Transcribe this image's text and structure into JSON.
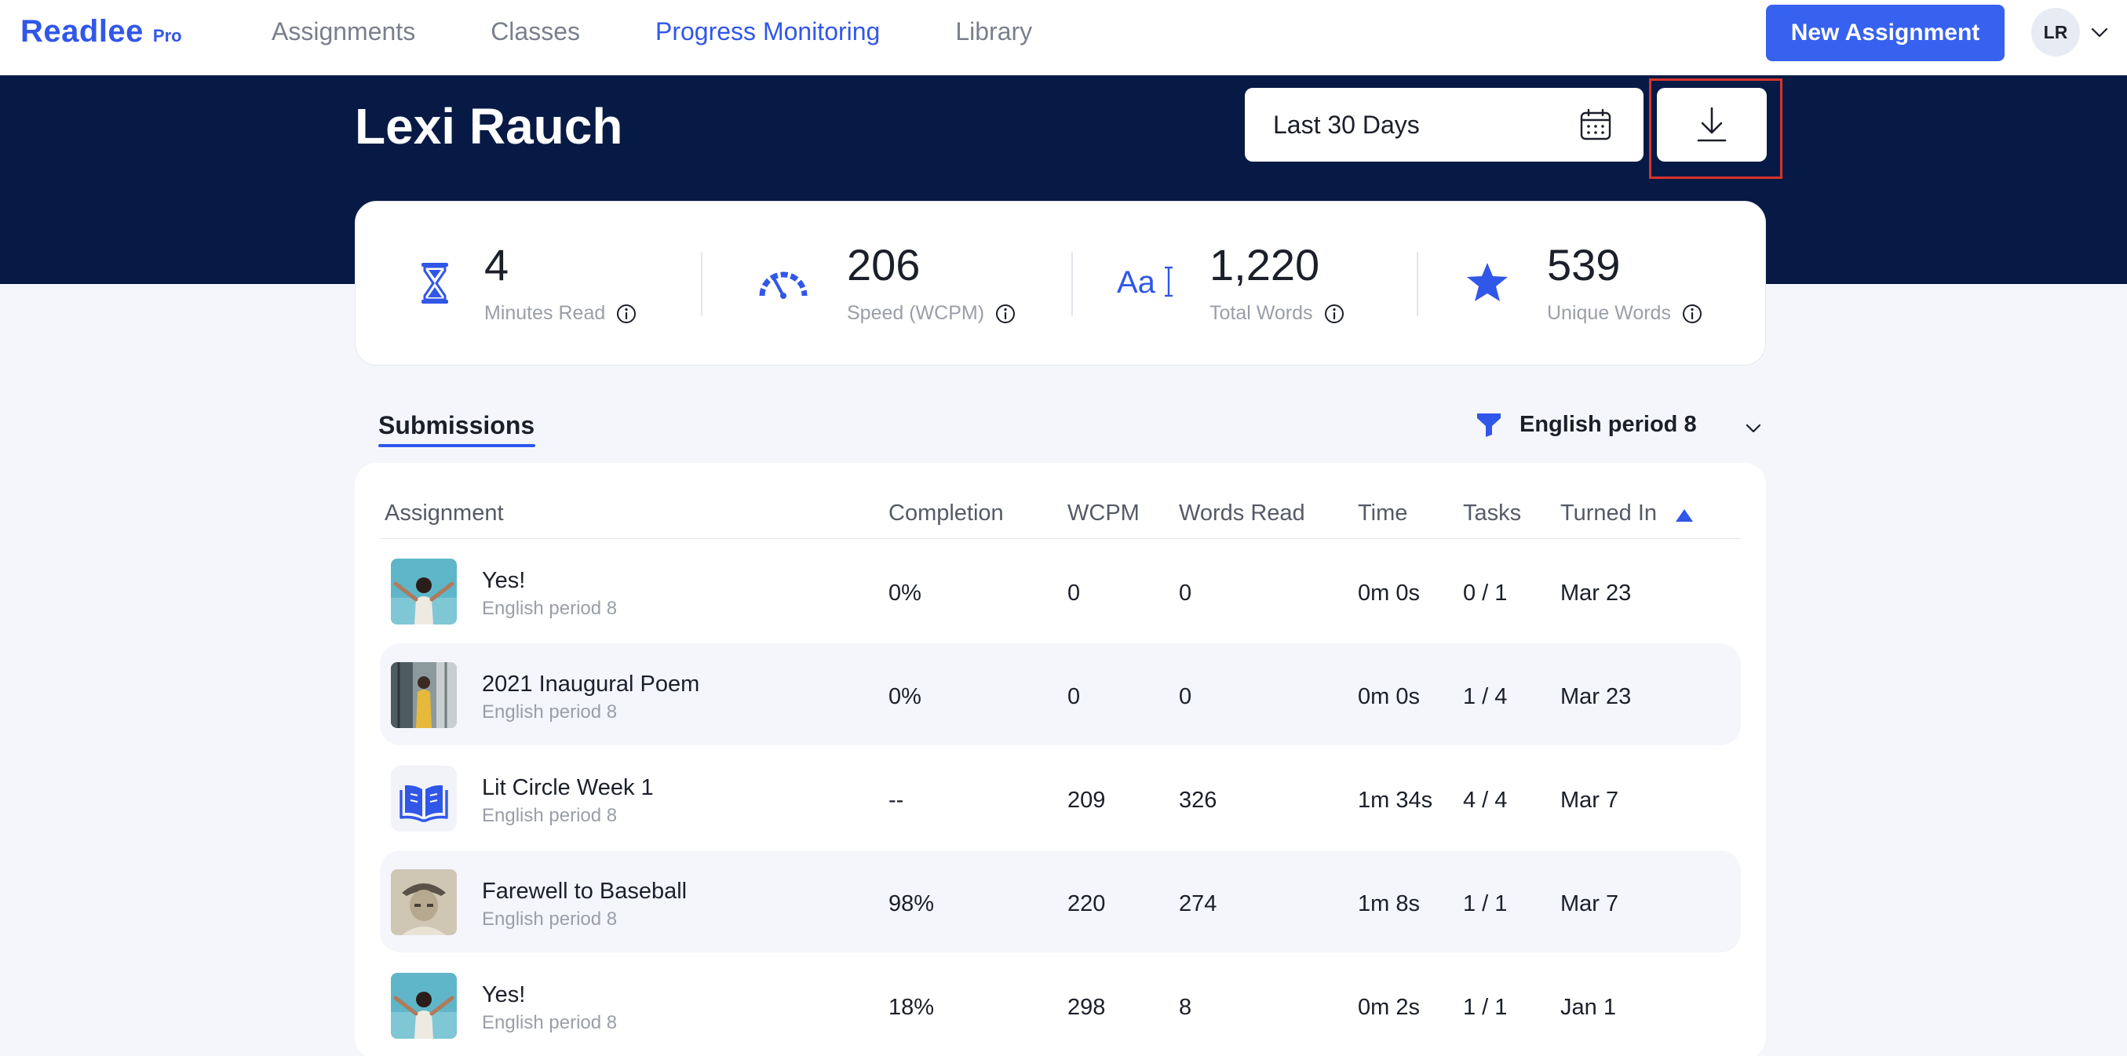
{
  "app": {
    "logo": "Readlee",
    "logo_suffix": "Pro"
  },
  "nav": {
    "items": [
      "Assignments",
      "Classes",
      "Progress Monitoring",
      "Library"
    ],
    "active_index": 2
  },
  "header": {
    "new_assignment_label": "New Assignment",
    "avatar_initials": "LR"
  },
  "student": {
    "name": "Lexi Rauch"
  },
  "date_filter": {
    "label": "Last 30 Days"
  },
  "stats": [
    {
      "value": "4",
      "label": "Minutes Read",
      "icon": "hourglass-icon"
    },
    {
      "value": "206",
      "label": "Speed (WCPM)",
      "icon": "speedometer-icon"
    },
    {
      "value": "1,220",
      "label": "Total Words",
      "icon": "text-cursor-icon"
    },
    {
      "value": "539",
      "label": "Unique Words",
      "icon": "star-icon"
    }
  ],
  "submissions": {
    "tab_label": "Submissions",
    "class_filter": "English period 8",
    "columns": [
      "Assignment",
      "Completion",
      "WCPM",
      "Words Read",
      "Time",
      "Tasks",
      "Turned In"
    ],
    "rows": [
      {
        "title": "Yes!",
        "class": "English period 8",
        "completion": "0%",
        "wcpm": "0",
        "words_read": "0",
        "time": "0m 0s",
        "tasks": "0 / 1",
        "turned_in": "Mar 23",
        "thumb": "photo-teal"
      },
      {
        "title": "2021 Inaugural Poem",
        "class": "English period 8",
        "completion": "0%",
        "wcpm": "0",
        "words_read": "0",
        "time": "0m 0s",
        "tasks": "1 / 4",
        "turned_in": "Mar 23",
        "thumb": "photo-yellow"
      },
      {
        "title": "Lit Circle Week 1",
        "class": "English period 8",
        "completion": "--",
        "wcpm": "209",
        "words_read": "326",
        "time": "1m 34s",
        "tasks": "4 / 4",
        "turned_in": "Mar 7",
        "thumb": "book-icon"
      },
      {
        "title": "Farewell to Baseball",
        "class": "English period 8",
        "completion": "98%",
        "wcpm": "220",
        "words_read": "274",
        "time": "1m 8s",
        "tasks": "1 / 1",
        "turned_in": "Mar 7",
        "thumb": "photo-sepia"
      },
      {
        "title": "Yes!",
        "class": "English period 8",
        "completion": "18%",
        "wcpm": "298",
        "words_read": "8",
        "time": "0m 2s",
        "tasks": "1 / 1",
        "turned_in": "Jan 1",
        "thumb": "photo-teal"
      }
    ]
  },
  "colors": {
    "accent": "#3157e8",
    "header_band": "#071a45",
    "highlight": "#d9342b"
  }
}
